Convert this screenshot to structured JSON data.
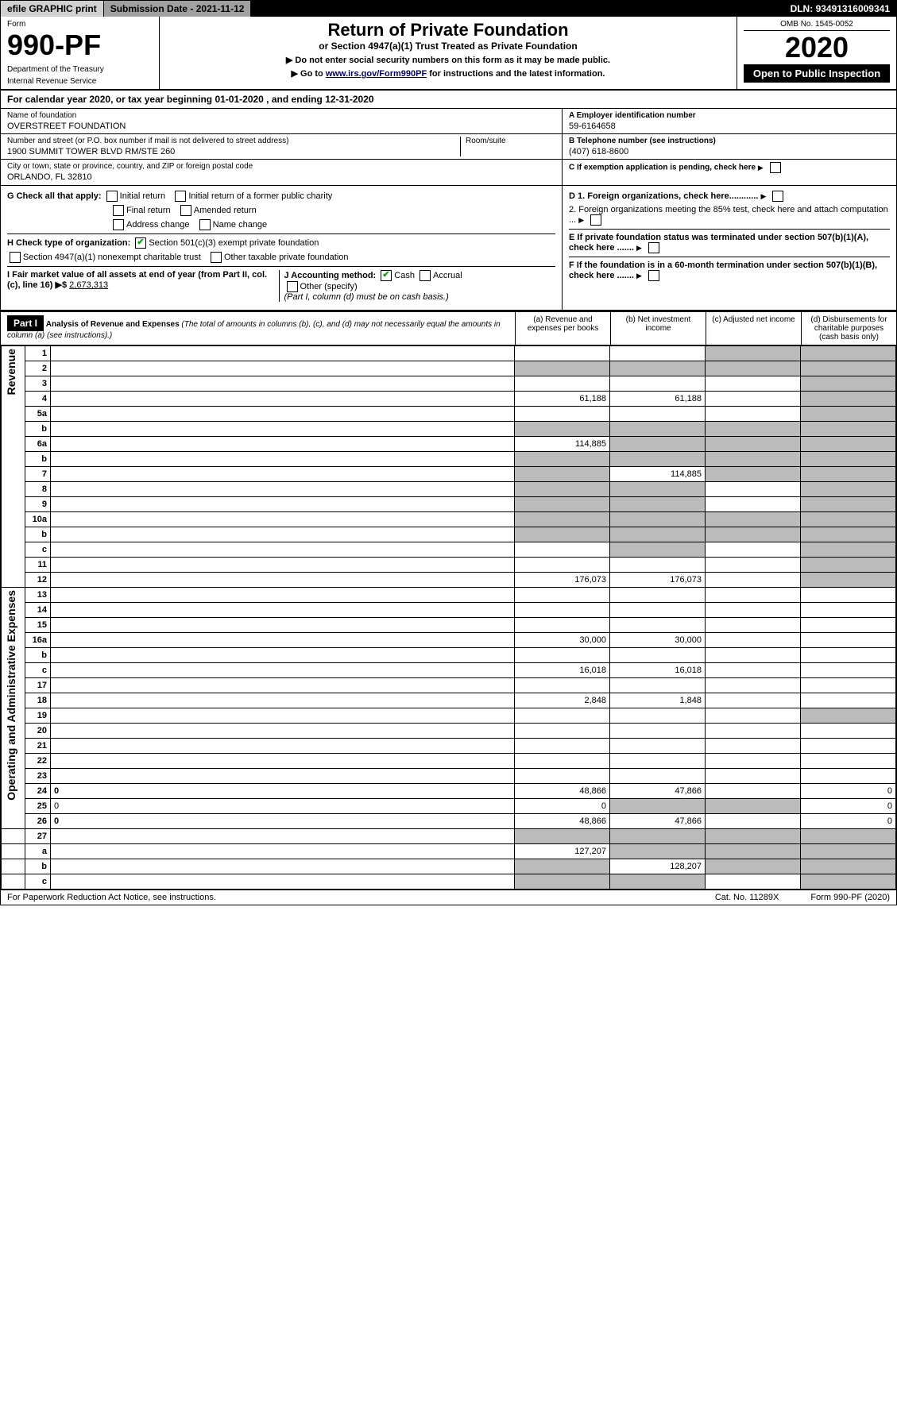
{
  "topbar": {
    "efile": "efile GRAPHIC print",
    "subdate_label": "Submission Date - ",
    "subdate": "2021-11-12",
    "dln_label": "DLN: ",
    "dln": "93491316009341"
  },
  "header": {
    "form_label": "Form",
    "form_no": "990-PF",
    "dept1": "Department of the Treasury",
    "dept2": "Internal Revenue Service",
    "title": "Return of Private Foundation",
    "subtitle": "or Section 4947(a)(1) Trust Treated as Private Foundation",
    "instr1": "▶ Do not enter social security numbers on this form as it may be made public.",
    "instr2_pre": "▶ Go to ",
    "instr2_link": "www.irs.gov/Form990PF",
    "instr2_post": " for instructions and the latest information.",
    "omb": "OMB No. 1545-0052",
    "year": "2020",
    "open_public": "Open to Public Inspection"
  },
  "calrow": {
    "pre": "For calendar year 2020, or tax year beginning ",
    "begin": "01-01-2020",
    "mid": " , and ending ",
    "end": "12-31-2020"
  },
  "info_left": {
    "name_lbl": "Name of foundation",
    "name_val": "OVERSTREET FOUNDATION",
    "addr_lbl": "Number and street (or P.O. box number if mail is not delivered to street address)",
    "addr_val": "1900 SUMMIT TOWER BLVD RM/STE 260",
    "room_lbl": "Room/suite",
    "city_lbl": "City or town, state or province, country, and ZIP or foreign postal code",
    "city_val": "ORLANDO, FL  32810"
  },
  "info_right": {
    "a_lbl": "A Employer identification number",
    "a_val": "59-6164658",
    "b_lbl": "B Telephone number (see instructions)",
    "b_val": "(407) 618-8600",
    "c_lbl": "C If exemption application is pending, check here",
    "d1_lbl": "D 1. Foreign organizations, check here............",
    "d2_lbl": "2. Foreign organizations meeting the 85% test, check here and attach computation ...",
    "e_lbl": "E If private foundation status was terminated under section 507(b)(1)(A), check here .......",
    "f_lbl": "F If the foundation is in a 60-month termination under section 507(b)(1)(B), check here ......."
  },
  "gh": {
    "g_lbl": "G Check all that apply:",
    "g_opts": [
      "Initial return",
      "Final return",
      "Address change",
      "Initial return of a former public charity",
      "Amended return",
      "Name change"
    ],
    "h_lbl": "H Check type of organization:",
    "h1": "Section 501(c)(3) exempt private foundation",
    "h2": "Section 4947(a)(1) nonexempt charitable trust",
    "h3": "Other taxable private foundation",
    "i_lbl": "I Fair market value of all assets at end of year (from Part II, col. (c), line 16) ▶$ ",
    "i_val": "2,673,313",
    "j_lbl": "J Accounting method:",
    "j_opts": [
      "Cash",
      "Accrual",
      "Other (specify)"
    ],
    "j_note": "(Part I, column (d) must be on cash basis.)"
  },
  "part1": {
    "bar": "Part I",
    "title": "Analysis of Revenue and Expenses",
    "note": " (The total of amounts in columns (b), (c), and (d) may not necessarily equal the amounts in column (a) (see instructions).)",
    "col_a": "(a) Revenue and expenses per books",
    "col_b": "(b) Net investment income",
    "col_c": "(c) Adjusted net income",
    "col_d": "(d) Disbursements for charitable purposes (cash basis only)"
  },
  "sections": {
    "revenue": "Revenue",
    "opex": "Operating and Administrative Expenses"
  },
  "rows": [
    {
      "n": "1",
      "d": "",
      "a": "",
      "b": "",
      "c": "",
      "sec": "revenue",
      "gray": [
        "c",
        "d"
      ]
    },
    {
      "n": "2",
      "d": "",
      "a": "",
      "b": "",
      "c": "",
      "sec": "revenue",
      "gray": [
        "a",
        "b",
        "c",
        "d"
      ]
    },
    {
      "n": "3",
      "d": "",
      "a": "",
      "b": "",
      "c": "",
      "sec": "revenue",
      "gray": [
        "d"
      ]
    },
    {
      "n": "4",
      "d": "",
      "a": "61,188",
      "b": "61,188",
      "c": "",
      "sec": "revenue",
      "gray": [
        "d"
      ]
    },
    {
      "n": "5a",
      "d": "",
      "a": "",
      "b": "",
      "c": "",
      "sec": "revenue",
      "gray": [
        "d"
      ]
    },
    {
      "n": "b",
      "d": "",
      "a": "",
      "b": "",
      "c": "",
      "sec": "revenue",
      "gray": [
        "a",
        "b",
        "c",
        "d"
      ]
    },
    {
      "n": "6a",
      "d": "",
      "a": "114,885",
      "b": "",
      "c": "",
      "sec": "revenue",
      "gray": [
        "b",
        "c",
        "d"
      ]
    },
    {
      "n": "b",
      "d": "",
      "a": "",
      "b": "",
      "c": "",
      "sec": "revenue",
      "gray": [
        "a",
        "b",
        "c",
        "d"
      ]
    },
    {
      "n": "7",
      "d": "",
      "a": "",
      "b": "114,885",
      "c": "",
      "sec": "revenue",
      "gray": [
        "a",
        "c",
        "d"
      ]
    },
    {
      "n": "8",
      "d": "",
      "a": "",
      "b": "",
      "c": "",
      "sec": "revenue",
      "gray": [
        "a",
        "b",
        "d"
      ]
    },
    {
      "n": "9",
      "d": "",
      "a": "",
      "b": "",
      "c": "",
      "sec": "revenue",
      "gray": [
        "a",
        "b",
        "d"
      ]
    },
    {
      "n": "10a",
      "d": "",
      "a": "",
      "b": "",
      "c": "",
      "sec": "revenue",
      "gray": [
        "a",
        "b",
        "c",
        "d"
      ]
    },
    {
      "n": "b",
      "d": "",
      "a": "",
      "b": "",
      "c": "",
      "sec": "revenue",
      "gray": [
        "a",
        "b",
        "c",
        "d"
      ]
    },
    {
      "n": "c",
      "d": "",
      "a": "",
      "b": "",
      "c": "",
      "sec": "revenue",
      "gray": [
        "b",
        "d"
      ]
    },
    {
      "n": "11",
      "d": "",
      "a": "",
      "b": "",
      "c": "",
      "sec": "revenue",
      "gray": [
        "d"
      ]
    },
    {
      "n": "12",
      "d": "",
      "a": "176,073",
      "b": "176,073",
      "c": "",
      "sec": "revenue",
      "bold": true,
      "gray": [
        "d"
      ]
    },
    {
      "n": "13",
      "d": "",
      "a": "",
      "b": "",
      "c": "",
      "sec": "opex"
    },
    {
      "n": "14",
      "d": "",
      "a": "",
      "b": "",
      "c": "",
      "sec": "opex"
    },
    {
      "n": "15",
      "d": "",
      "a": "",
      "b": "",
      "c": "",
      "sec": "opex"
    },
    {
      "n": "16a",
      "d": "",
      "a": "30,000",
      "b": "30,000",
      "c": "",
      "sec": "opex"
    },
    {
      "n": "b",
      "d": "",
      "a": "",
      "b": "",
      "c": "",
      "sec": "opex"
    },
    {
      "n": "c",
      "d": "",
      "a": "16,018",
      "b": "16,018",
      "c": "",
      "sec": "opex"
    },
    {
      "n": "17",
      "d": "",
      "a": "",
      "b": "",
      "c": "",
      "sec": "opex"
    },
    {
      "n": "18",
      "d": "",
      "a": "2,848",
      "b": "1,848",
      "c": "",
      "sec": "opex"
    },
    {
      "n": "19",
      "d": "",
      "a": "",
      "b": "",
      "c": "",
      "sec": "opex",
      "gray": [
        "d"
      ]
    },
    {
      "n": "20",
      "d": "",
      "a": "",
      "b": "",
      "c": "",
      "sec": "opex"
    },
    {
      "n": "21",
      "d": "",
      "a": "",
      "b": "",
      "c": "",
      "sec": "opex"
    },
    {
      "n": "22",
      "d": "",
      "a": "",
      "b": "",
      "c": "",
      "sec": "opex"
    },
    {
      "n": "23",
      "d": "",
      "a": "",
      "b": "",
      "c": "",
      "sec": "opex"
    },
    {
      "n": "24",
      "d": "0",
      "a": "48,866",
      "b": "47,866",
      "c": "",
      "sec": "opex",
      "bold": true
    },
    {
      "n": "25",
      "d": "0",
      "a": "0",
      "b": "",
      "c": "",
      "sec": "opex",
      "gray": [
        "b",
        "c"
      ]
    },
    {
      "n": "26",
      "d": "0",
      "a": "48,866",
      "b": "47,866",
      "c": "",
      "sec": "opex",
      "bold": true
    },
    {
      "n": "27",
      "d": "",
      "a": "",
      "b": "",
      "c": "",
      "sec": "none",
      "gray": [
        "a",
        "b",
        "c",
        "d"
      ]
    },
    {
      "n": "a",
      "d": "",
      "a": "127,207",
      "b": "",
      "c": "",
      "sec": "none",
      "bold": true,
      "gray": [
        "b",
        "c",
        "d"
      ]
    },
    {
      "n": "b",
      "d": "",
      "a": "",
      "b": "128,207",
      "c": "",
      "sec": "none",
      "bold": true,
      "gray": [
        "a",
        "c",
        "d"
      ]
    },
    {
      "n": "c",
      "d": "",
      "a": "",
      "b": "",
      "c": "",
      "sec": "none",
      "bold": true,
      "gray": [
        "a",
        "b",
        "d"
      ]
    }
  ],
  "footer": {
    "l": "For Paperwork Reduction Act Notice, see instructions.",
    "m": "Cat. No. 11289X",
    "r": "Form 990-PF (2020)"
  }
}
